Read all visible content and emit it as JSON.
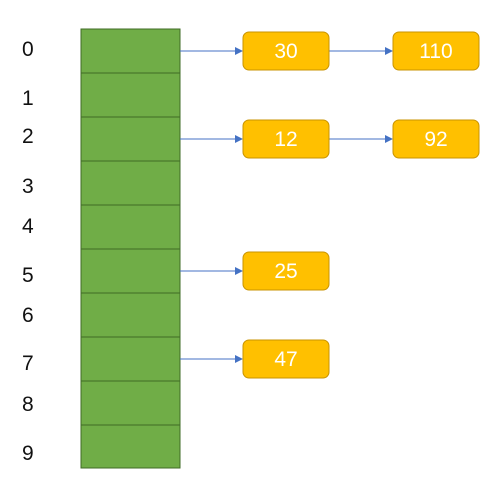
{
  "colors": {
    "bucket_fill": "#70ad47",
    "bucket_border": "#3f6b25",
    "node_fill": "#ffc000",
    "node_border": "#c99300",
    "node_text": "#ffffff",
    "arrow": "#4472c4",
    "label": "#111111"
  },
  "hash_table": {
    "buckets": [
      {
        "index": "0",
        "chain": [
          "30",
          "110"
        ]
      },
      {
        "index": "1",
        "chain": []
      },
      {
        "index": "2",
        "chain": [
          "12",
          "92"
        ]
      },
      {
        "index": "3",
        "chain": []
      },
      {
        "index": "4",
        "chain": []
      },
      {
        "index": "5",
        "chain": [
          "25"
        ]
      },
      {
        "index": "6",
        "chain": []
      },
      {
        "index": "7",
        "chain": [
          "47"
        ]
      },
      {
        "index": "8",
        "chain": []
      },
      {
        "index": "9",
        "chain": []
      }
    ]
  }
}
